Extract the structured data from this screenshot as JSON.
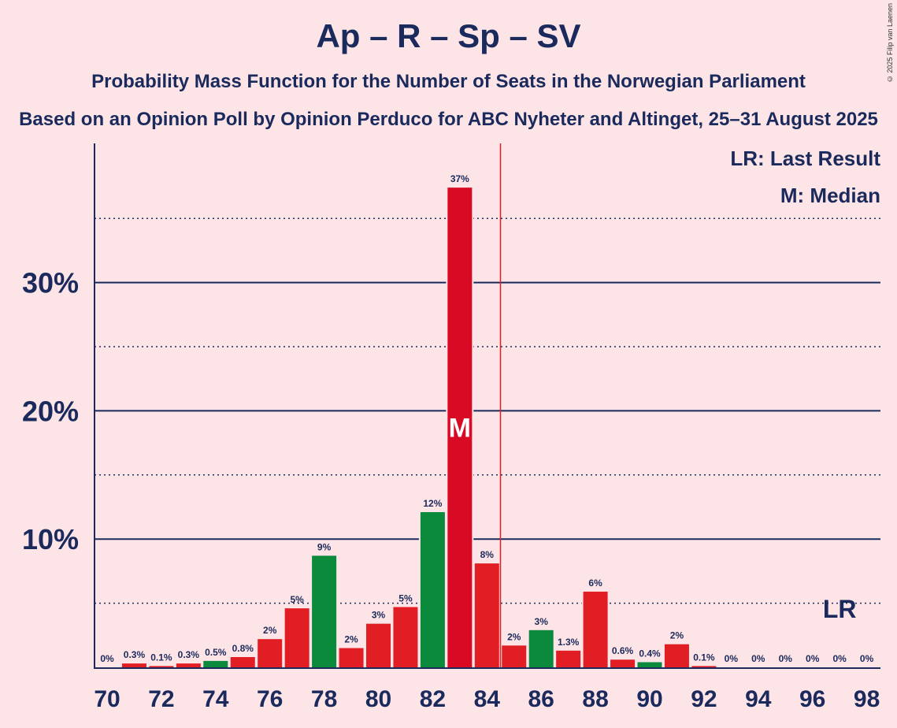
{
  "header": {
    "title": "Ap – R – Sp – SV",
    "subtitle": "Probability Mass Function for the Number of Seats in the Norwegian Parliament",
    "source": "Based on an Opinion Poll by Opinion Perduco for ABC Nyheter and Altinget, 25–31 August 2025",
    "copyright": "© 2025 Filip van Laenen"
  },
  "legend": {
    "last_result": "LR: Last Result",
    "median": "M: Median"
  },
  "colors": {
    "red": "#e01e24",
    "dark_red": "#d90a24",
    "green": "#0a8a3a",
    "axis": "#1a2a5c",
    "majority_line": "#e01e24",
    "background": "#fde4e6"
  },
  "chart_data": {
    "type": "bar",
    "x": [
      70,
      71,
      72,
      73,
      74,
      75,
      76,
      77,
      78,
      79,
      80,
      81,
      82,
      83,
      84,
      85,
      86,
      87,
      88,
      89,
      90,
      91,
      92,
      93,
      94,
      95,
      96,
      97,
      98
    ],
    "values": [
      0,
      0.3,
      0.1,
      0.3,
      0.5,
      0.8,
      2.2,
      4.6,
      8.7,
      1.5,
      3.4,
      4.7,
      12.1,
      37.4,
      8.1,
      1.7,
      2.9,
      1.3,
      5.9,
      0.6,
      0.4,
      1.8,
      0.1,
      0,
      0,
      0,
      0,
      0,
      0
    ],
    "labels": [
      "0%",
      "0.3%",
      "0.1%",
      "0.3%",
      "0.5%",
      "0.8%",
      "2%",
      "5%",
      "9%",
      "2%",
      "3%",
      "5%",
      "12%",
      "37%",
      "8%",
      "2%",
      "3%",
      "1.3%",
      "6%",
      "0.6%",
      "0.4%",
      "2%",
      "0.1%",
      "0%",
      "0%",
      "0%",
      "0%",
      "0%",
      "0%"
    ],
    "bar_colors": [
      "red",
      "red",
      "red",
      "red",
      "green",
      "red",
      "red",
      "red",
      "green",
      "red",
      "red",
      "red",
      "green",
      "dark_red",
      "red",
      "red",
      "green",
      "red",
      "red",
      "red",
      "green",
      "red",
      "red",
      "red",
      "red",
      "red",
      "red",
      "red",
      "red"
    ],
    "ylim": [
      0,
      40
    ],
    "yticks": [
      10,
      20,
      30
    ],
    "ytick_labels": [
      "10%",
      "20%",
      "30%"
    ],
    "xticks": [
      70,
      72,
      74,
      76,
      78,
      80,
      82,
      84,
      86,
      88,
      90,
      92,
      94,
      96,
      98
    ],
    "xtick_labels": [
      "70",
      "72",
      "74",
      "76",
      "78",
      "80",
      "82",
      "84",
      "86",
      "88",
      "90",
      "92",
      "94",
      "96",
      "98"
    ],
    "median": 83,
    "median_marker": "M",
    "majority_line_x": 84.5,
    "last_result": 97,
    "last_result_marker": "LR",
    "grid": true
  }
}
